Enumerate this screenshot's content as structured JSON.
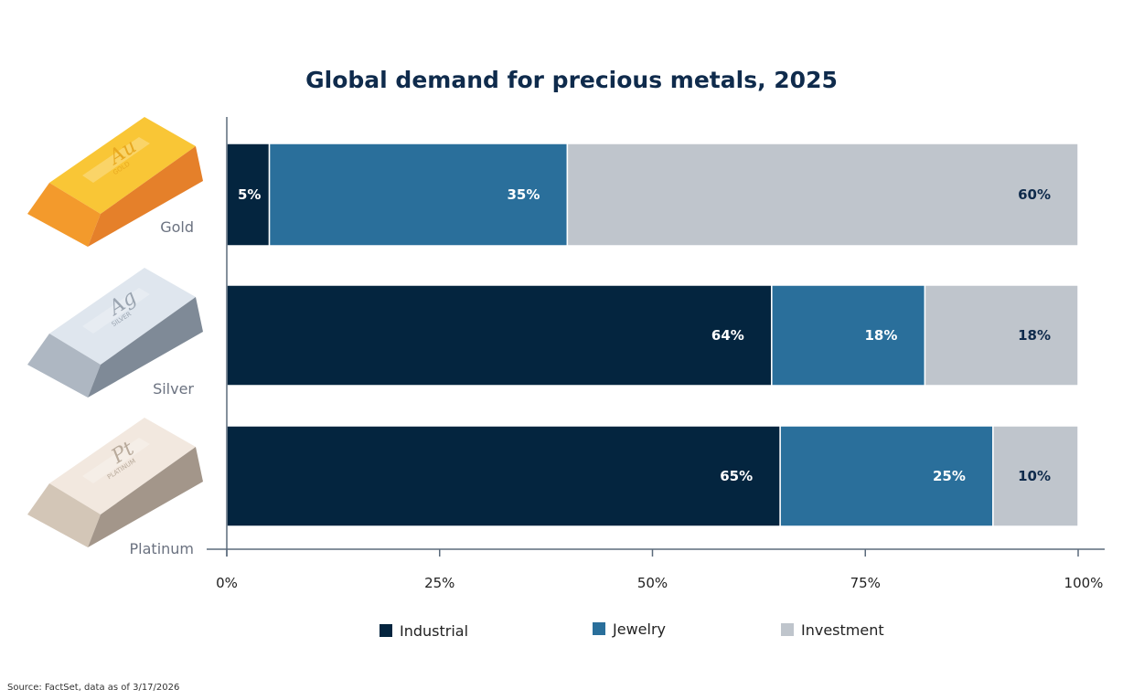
{
  "chart_data": {
    "type": "bar",
    "orientation": "horizontal",
    "stacked": true,
    "title": "Global demand for precious metals, 2025",
    "categories": [
      "Gold",
      "Silver",
      "Platinum"
    ],
    "series": [
      {
        "name": "Industrial",
        "values": [
          5,
          64,
          65
        ],
        "labels": [
          "5%",
          "64%",
          "65%"
        ],
        "color": "#04253f",
        "label_color": "#ffffff"
      },
      {
        "name": "Jewelry",
        "values": [
          35,
          18,
          25
        ],
        "labels": [
          "35%",
          "18%",
          "25%"
        ],
        "color": "#2a6f9b",
        "label_color": "#ffffff"
      },
      {
        "name": "Investment",
        "values": [
          60,
          18,
          10
        ],
        "labels": [
          "60%",
          "18%",
          "10%"
        ],
        "color": "#bfc5cc",
        "label_color": "#0f2b4c"
      }
    ],
    "xlim": [
      0,
      100
    ],
    "xticks": [
      0,
      25,
      50,
      75,
      100
    ],
    "xtick_labels": [
      "0%",
      "25%",
      "50%",
      "75%",
      "100%"
    ],
    "xlabel": "",
    "ylabel": "",
    "grid": false,
    "legend_position": "bottom",
    "source": "Source: FactSet, data as of 3/17/2026"
  },
  "ingots": [
    {
      "symbol": "Au",
      "name": "GOLD",
      "top": "#f9c636",
      "front": "#f39a2c",
      "side": "#e5802a",
      "text": "#e8a820"
    },
    {
      "symbol": "Ag",
      "name": "SILVER",
      "top": "#dfe6ee",
      "front": "#aeb7c2",
      "side": "#7f8a97",
      "text": "#9aa4b0"
    },
    {
      "symbol": "Pt",
      "name": "PLATINUM",
      "top": "#f2e8df",
      "front": "#d3c6b7",
      "side": "#a3968a",
      "text": "#b8aa9b"
    }
  ]
}
